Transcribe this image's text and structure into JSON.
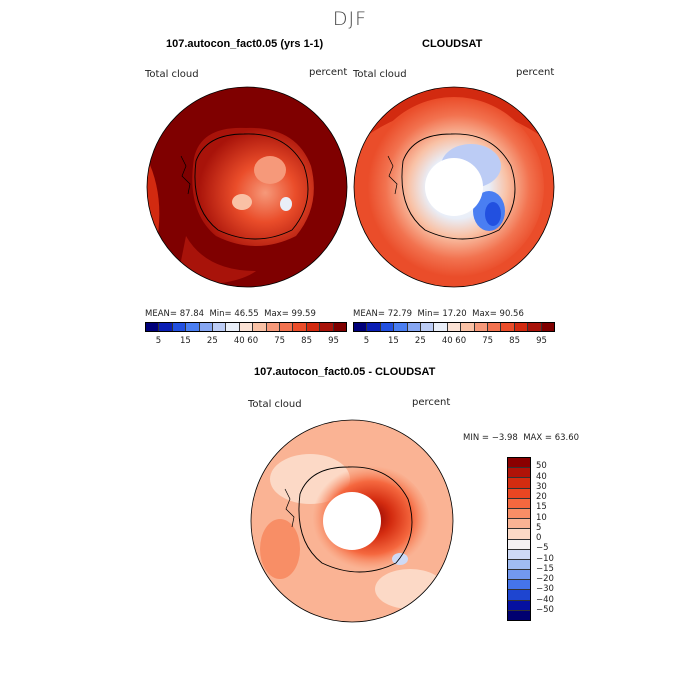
{
  "page_title": "DJF",
  "chart_data": [
    {
      "type": "heatmap",
      "title": "107.autocon_fact0.05 (yrs 1-1)",
      "variable": "Total cloud",
      "units": "percent",
      "stats": {
        "mean_label": "MEAN=",
        "mean": "87.84",
        "min_label": "Min=",
        "min": "46.55",
        "max_label": "Max=",
        "max": "99.59"
      },
      "colorbar": {
        "ticks": [
          "5",
          "15",
          "25",
          "40",
          "60",
          "75",
          "85",
          "95"
        ]
      }
    },
    {
      "type": "heatmap",
      "title": "CLOUDSAT",
      "variable": "Total cloud",
      "units": "percent",
      "stats": {
        "mean_label": "MEAN=",
        "mean": "72.79",
        "min_label": "Min=",
        "min": "17.20",
        "max_label": "Max=",
        "max": "90.56"
      },
      "colorbar": {
        "ticks": [
          "5",
          "15",
          "25",
          "40",
          "60",
          "75",
          "85",
          "95"
        ]
      }
    },
    {
      "type": "heatmap",
      "title": "107.autocon_fact0.05 - CLOUDSAT",
      "variable": "Total cloud",
      "units": "percent",
      "stats": {
        "min_label": "MIN =",
        "min": "−3.98",
        "max_label": "MAX =",
        "max": "63.60"
      },
      "colorbar": {
        "ticks": [
          "50",
          "40",
          "30",
          "20",
          "15",
          "10",
          "5",
          "0",
          "−5",
          "−10",
          "−15",
          "−20",
          "−30",
          "−40",
          "−50"
        ]
      }
    }
  ],
  "colors": {
    "abs_scale": [
      "#00007a",
      "#0a1eb4",
      "#2250e0",
      "#4a7ef2",
      "#86a6f2",
      "#bcccf5",
      "#e9eef8",
      "#fbe2d5",
      "#f9c1a5",
      "#f6997a",
      "#f2724f",
      "#ea4d2a",
      "#d22a10",
      "#a8130a",
      "#7f0000"
    ],
    "diff_scale": [
      "#8a0000",
      "#b01308",
      "#d42c10",
      "#ea4622",
      "#f5683f",
      "#f88e66",
      "#fab394",
      "#fcd9c6",
      "#f4f1f3",
      "#cedaf6",
      "#a0bcf2",
      "#7298ef",
      "#4574ea",
      "#1e45d0",
      "#0510a0",
      "#000070"
    ]
  }
}
